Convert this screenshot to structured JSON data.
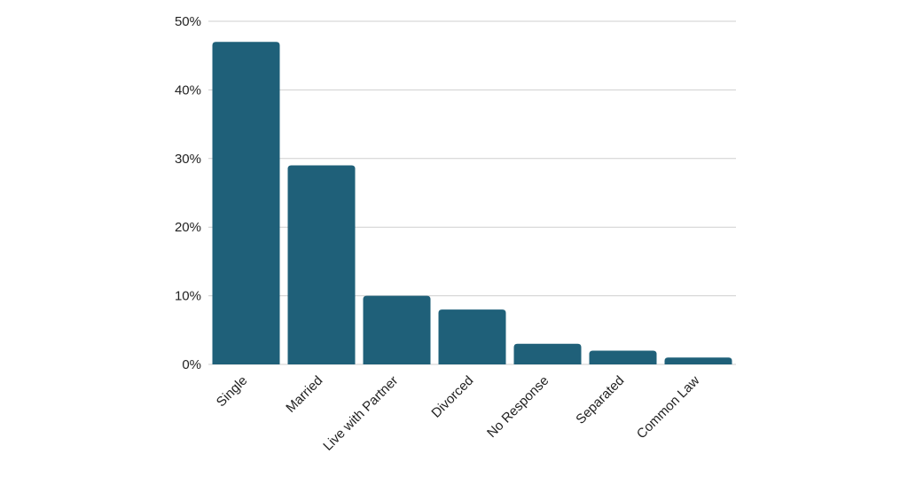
{
  "chart_data": {
    "type": "bar",
    "title": "",
    "xlabel": "",
    "ylabel": "",
    "categories": [
      "Single",
      "Married",
      "Live with Partner",
      "Divorced",
      "No Response",
      "Separated",
      "Common Law"
    ],
    "values": [
      47,
      29,
      10,
      8,
      3,
      2,
      1
    ],
    "ylim": [
      0,
      50
    ],
    "yticks": [
      0,
      10,
      20,
      30,
      40,
      50
    ],
    "ytick_labels": [
      "0%",
      "10%",
      "20%",
      "30%",
      "40%",
      "50%"
    ],
    "grid": true,
    "legend": "none",
    "bar_color": "#1f6079"
  }
}
